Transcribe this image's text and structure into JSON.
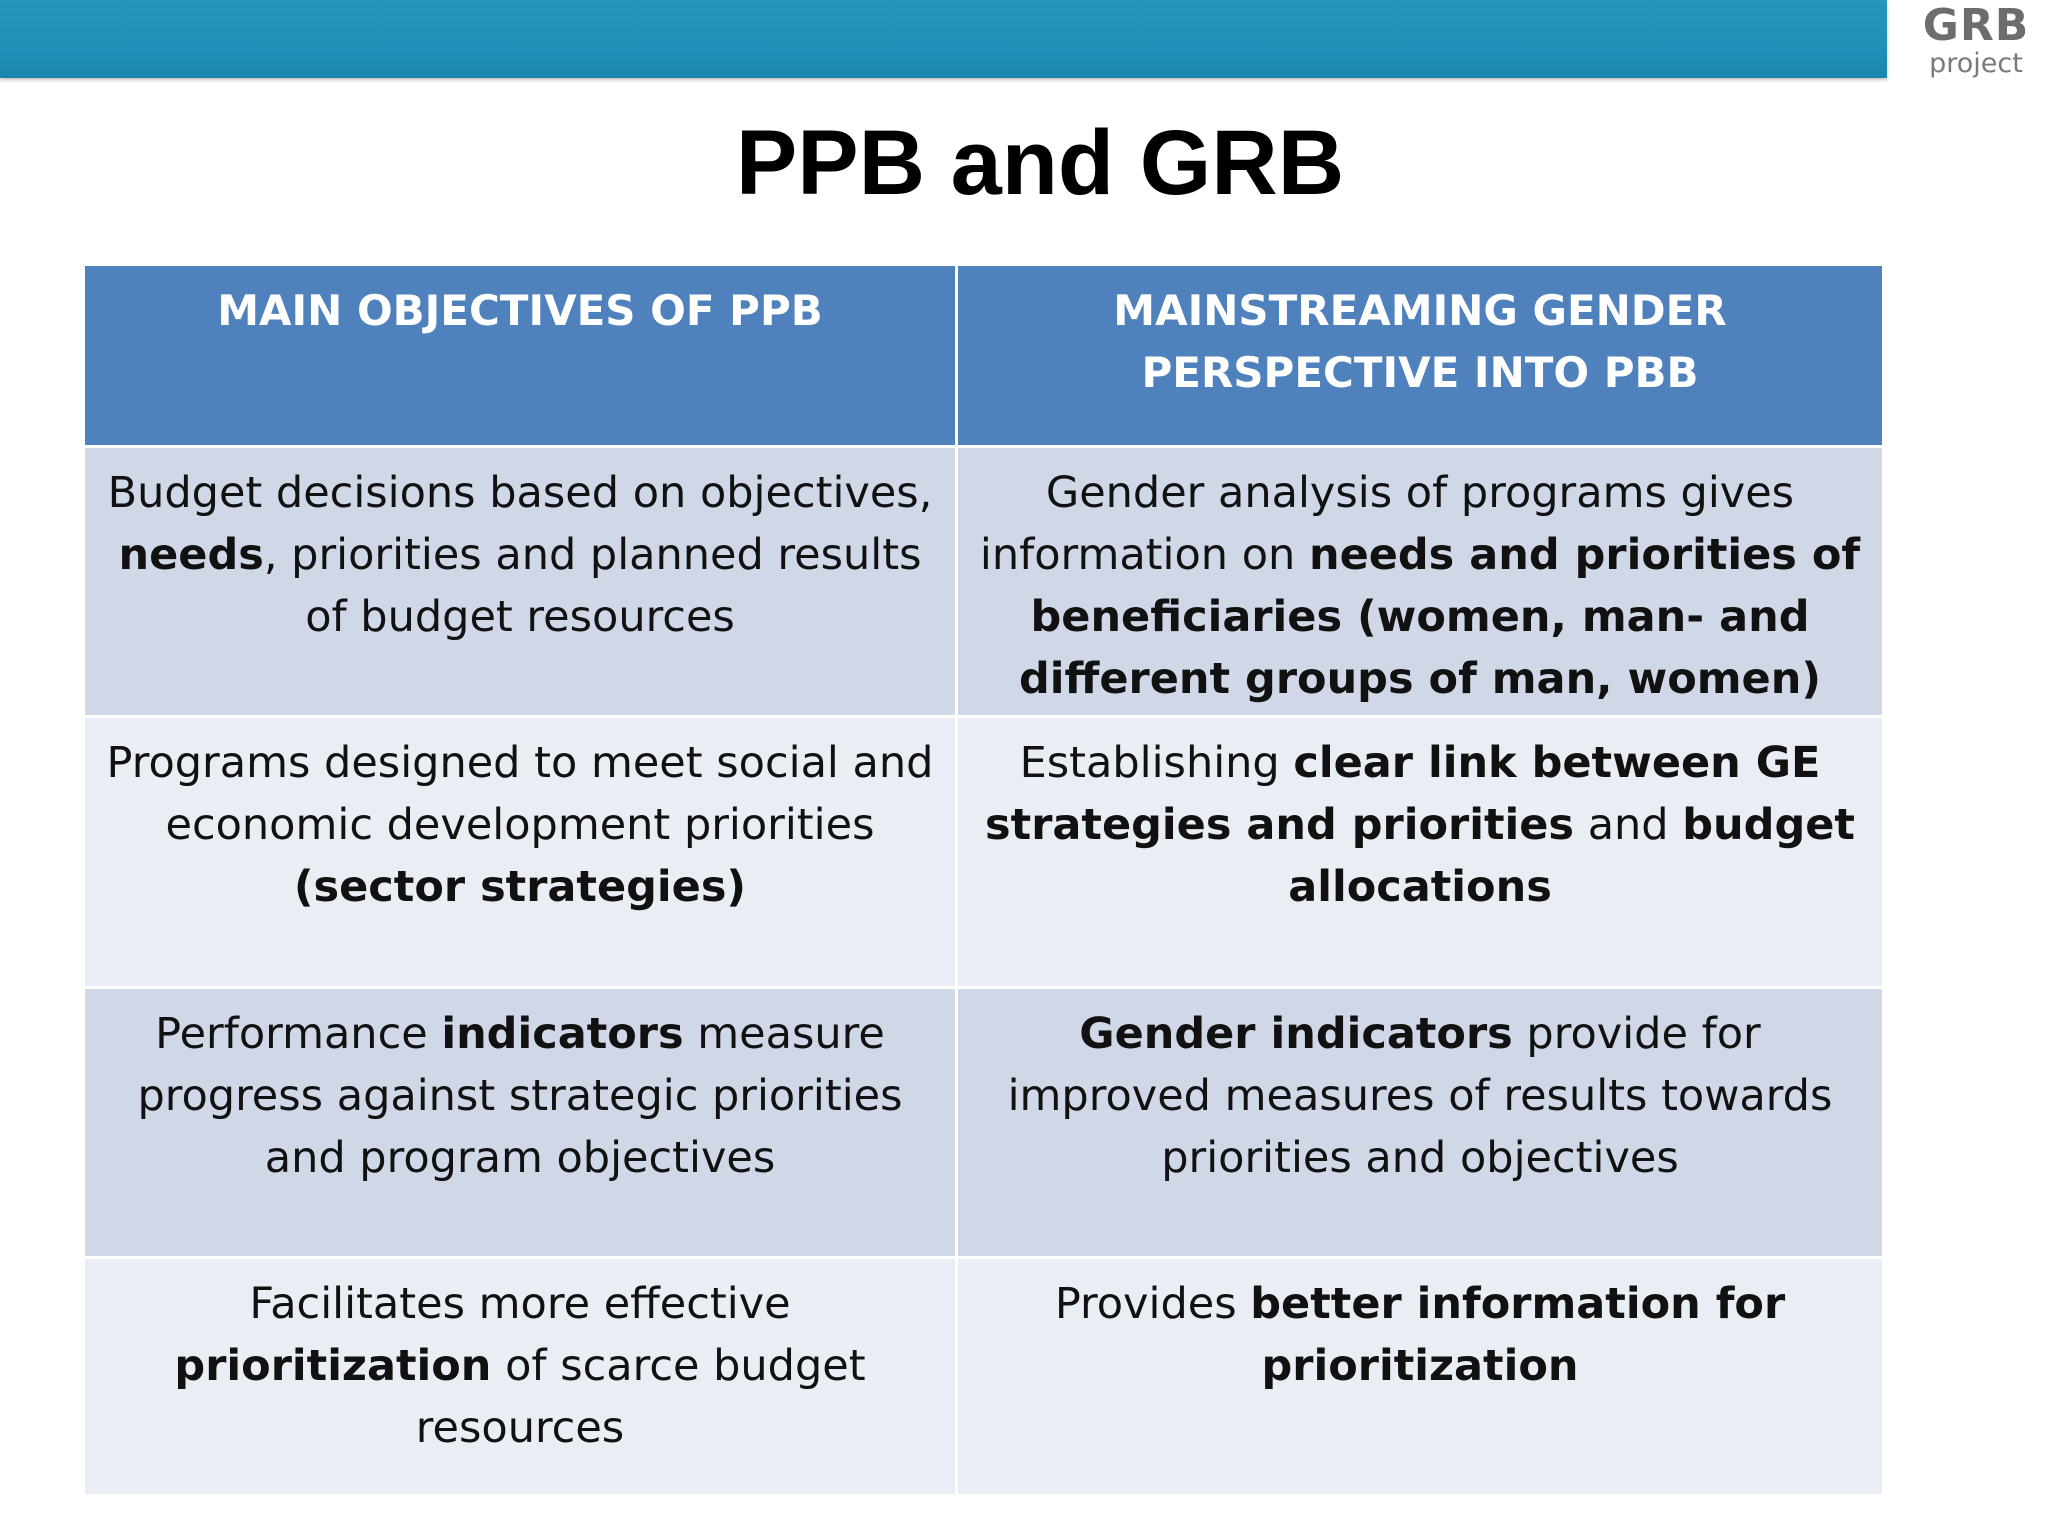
{
  "logo": {
    "main": "GRB",
    "sub": "project"
  },
  "title": "PPB and GRB",
  "table": {
    "headers": [
      "MAIN OBJECTIVES OF PPB",
      "MAINSTREAMING GENDER PERSPECTIVE INTO PBB"
    ],
    "rows": [
      {
        "left": [
          {
            "t": "Budget decisions based on objectives, ",
            "b": false
          },
          {
            "t": "needs",
            "b": true
          },
          {
            "t": ", priorities and planned results of budget resources",
            "b": false
          }
        ],
        "right": [
          {
            "t": "Gender analysis of programs gives information on ",
            "b": false
          },
          {
            "t": "needs and priorities of beneficiaries (women, man- and different groups of man, women)",
            "b": true
          }
        ]
      },
      {
        "left": [
          {
            "t": "Programs designed to meet social and economic development priorities ",
            "b": false
          },
          {
            "t": "(sector strategies)",
            "b": true
          }
        ],
        "right": [
          {
            "t": "Establishing ",
            "b": false
          },
          {
            "t": "clear link between GE strategies and priorities",
            "b": true
          },
          {
            "t": " and ",
            "b": false
          },
          {
            "t": "budget allocations",
            "b": true
          }
        ]
      },
      {
        "left": [
          {
            "t": "Performance ",
            "b": false
          },
          {
            "t": "indicators",
            "b": true
          },
          {
            "t": " measure progress against strategic priorities and program objectives",
            "b": false
          }
        ],
        "right": [
          {
            "t": "Gender indicators",
            "b": true
          },
          {
            "t": " provide for improved measures of results towards priorities and objectives",
            "b": false
          }
        ]
      },
      {
        "left": [
          {
            "t": "Facilitates more effective ",
            "b": false
          },
          {
            "t": "prioritization",
            "b": true
          },
          {
            "t": " of scarce budget resources",
            "b": false
          }
        ],
        "right": [
          {
            "t": "Provides ",
            "b": false
          },
          {
            "t": "better information for prioritization",
            "b": true
          }
        ]
      }
    ]
  },
  "colors": {
    "top_bar": "#1e8fb8",
    "header_bg": "#4f81bd",
    "row_dark": "#d0d8e8",
    "row_light": "#e9edf4"
  }
}
